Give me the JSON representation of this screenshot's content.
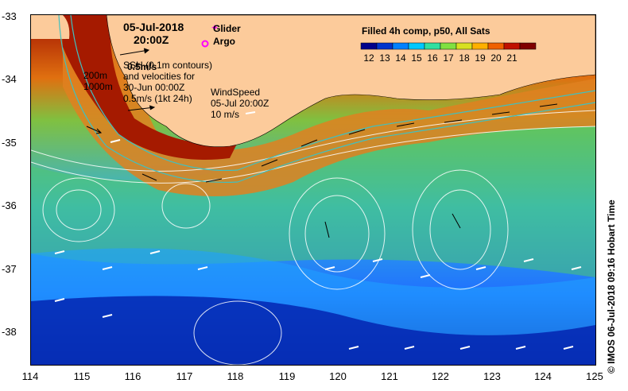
{
  "map": {
    "date": "05-Jul-2018",
    "time": "20:00Z",
    "legend_glider": "Glider",
    "legend_argo": "Argo",
    "bathy_200": "200m",
    "bathy_1000": "1000m",
    "ssh_overlay": "0.5m/s",
    "ssh_text_1": "SSH (0.1m contours)",
    "ssh_text_2": "and velocities for",
    "ssh_text_3": "30-Jun 00:00Z",
    "ssh_text_4": "0.5m/s (1kt 24h)",
    "wind_title": "WindSpeed",
    "wind_date": "05-Jul 20:00Z",
    "wind_speed": "10 m/s",
    "colorbar_title": "Filled 4h comp, p50, All Sats",
    "colorbar_ticks": [
      "12",
      "13",
      "14",
      "15",
      "16",
      "17",
      "18",
      "19",
      "20",
      "21"
    ],
    "colorbar_colors": [
      "#00008b",
      "#0033cc",
      "#0080ff",
      "#00c8ff",
      "#30e0a0",
      "#80e040",
      "#d8e020",
      "#ffb000",
      "#f06000",
      "#c01000",
      "#800000"
    ],
    "lat_ticks": [
      "-33",
      "-34",
      "-35",
      "-36",
      "-37",
      "-38"
    ],
    "lon_ticks": [
      "114",
      "115",
      "116",
      "117",
      "118",
      "119",
      "120",
      "121",
      "122",
      "123",
      "124",
      "125"
    ],
    "credit": "© IMOS 06-Jul-2018 09:16 Hobart Time"
  }
}
